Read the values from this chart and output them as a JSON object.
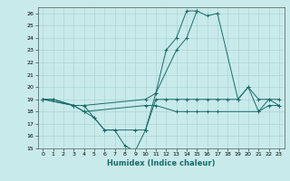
{
  "title": "",
  "xlabel": "Humidex (Indice chaleur)",
  "xlim": [
    -0.5,
    23.5
  ],
  "ylim": [
    15,
    26.5
  ],
  "yticks": [
    15,
    16,
    17,
    18,
    19,
    20,
    21,
    22,
    23,
    24,
    25,
    26
  ],
  "xticks": [
    0,
    1,
    2,
    3,
    4,
    5,
    6,
    7,
    8,
    9,
    10,
    11,
    12,
    13,
    14,
    15,
    16,
    17,
    18,
    19,
    20,
    21,
    22,
    23
  ],
  "bg_color": "#c8eaea",
  "line_color": "#1a6b6b",
  "lines": [
    {
      "x": [
        0,
        1,
        3,
        4,
        10,
        11,
        13,
        14,
        15,
        16,
        17,
        21,
        22,
        23
      ],
      "y": [
        19,
        19,
        18.5,
        18,
        18.5,
        18.5,
        18,
        18,
        18,
        18,
        18,
        18,
        18.5,
        18.5
      ]
    },
    {
      "x": [
        0,
        1,
        3,
        4,
        10,
        11,
        13,
        14,
        15,
        16,
        17,
        19,
        20,
        21,
        22,
        23
      ],
      "y": [
        19,
        19,
        18.5,
        18.5,
        19,
        19.5,
        23,
        24,
        26.2,
        25.8,
        26,
        19,
        20,
        18,
        19,
        18.5
      ]
    },
    {
      "x": [
        0,
        3,
        4,
        5,
        6,
        7,
        8,
        9,
        10,
        11,
        12,
        13,
        14,
        15
      ],
      "y": [
        19,
        18.5,
        18,
        17.5,
        16.5,
        16.5,
        15.2,
        14.8,
        16.5,
        19.5,
        23,
        24,
        26.2,
        26.2
      ]
    },
    {
      "x": [
        0,
        3,
        4,
        5,
        6,
        7,
        9,
        10,
        11,
        12,
        13,
        14,
        15,
        16,
        17,
        18,
        19,
        20,
        21,
        22,
        23
      ],
      "y": [
        19,
        18.5,
        18.5,
        17.5,
        16.5,
        16.5,
        16.5,
        16.5,
        19,
        19,
        19,
        19,
        19,
        19,
        19,
        19,
        19,
        20,
        19,
        19,
        19
      ]
    }
  ]
}
